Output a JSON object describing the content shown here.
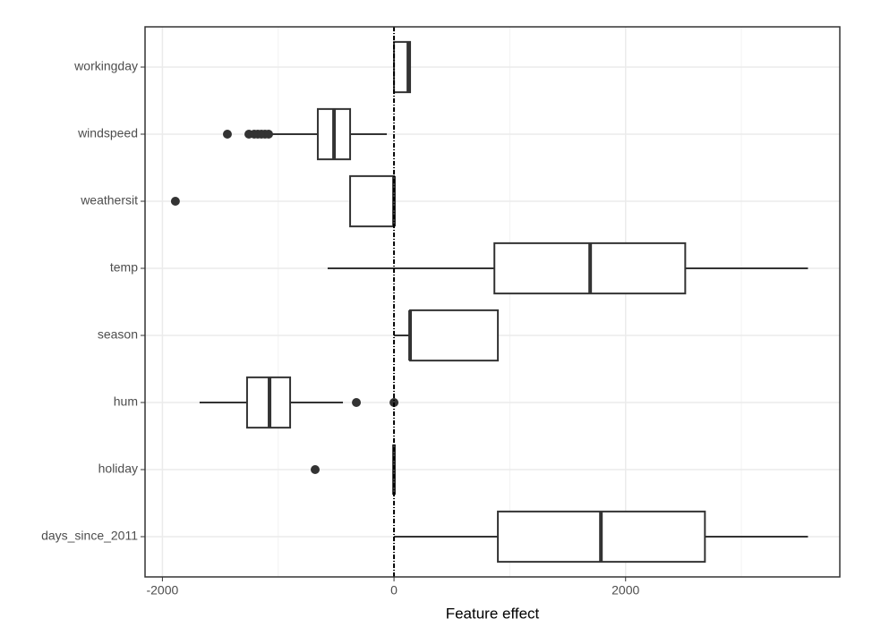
{
  "chart_data": {
    "type": "boxplot",
    "x_label": "Feature effect",
    "categories": [
      "workingday",
      "windspeed",
      "weathersit",
      "temp",
      "season",
      "hum",
      "holiday",
      "days_since_2011"
    ],
    "boxes": [
      {
        "min": 0,
        "q1": 0,
        "median": 124,
        "q3": 139,
        "max": 139,
        "outliers": []
      },
      {
        "min": -1060,
        "q1": -658,
        "median": -518,
        "q3": -379,
        "max": -62,
        "outliers": [
          -1439,
          -1253,
          -1207,
          -1176,
          -1145,
          -1114,
          -1083
        ]
      },
      {
        "min": -379,
        "q1": -379,
        "median": 0,
        "q3": 0,
        "max": 0,
        "outliers": [
          -1888
        ]
      },
      {
        "min": -573,
        "q1": 867,
        "median": 1694,
        "q3": 2515,
        "max": 3575,
        "outliers": []
      },
      {
        "min": 0,
        "q1": 139,
        "median": 139,
        "q3": 897,
        "max": 897,
        "outliers": []
      },
      {
        "min": -1679,
        "q1": -1269,
        "median": -1075,
        "q3": -897,
        "max": -441,
        "outliers": [
          -325,
          0
        ]
      },
      {
        "min": 0,
        "q1": 0,
        "median": 0,
        "q3": 0,
        "max": 0,
        "outliers": [
          -681
        ]
      },
      {
        "min": 0,
        "q1": 897,
        "median": 1787,
        "q3": 2685,
        "max": 3575,
        "outliers": []
      }
    ],
    "color": "#333333",
    "xlim": [
      -2150,
      3850
    ],
    "xticks": [
      -2000,
      0,
      2000
    ],
    "minor_xticks": [
      -1000,
      1000,
      3000
    ],
    "reference_line": 0,
    "grid": true
  }
}
